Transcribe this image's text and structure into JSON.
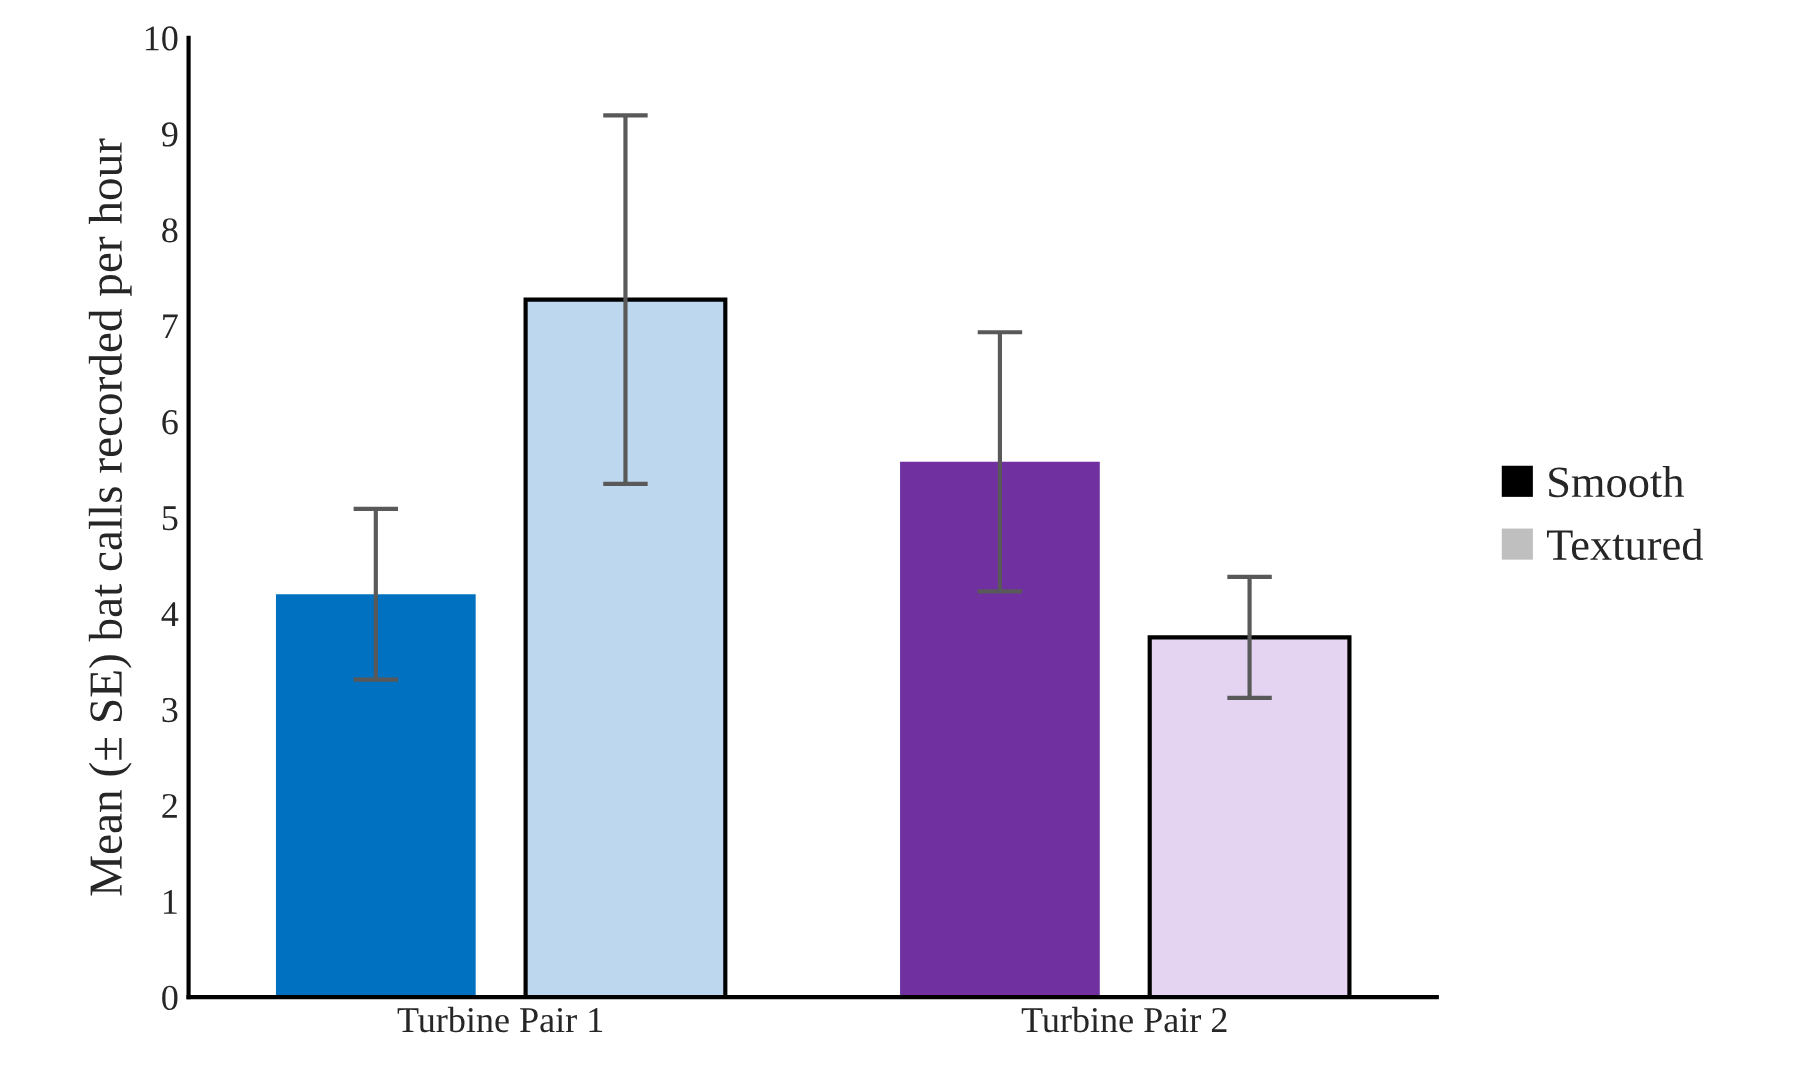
{
  "chart_data": {
    "type": "bar",
    "ylabel": "Mean (± SE) bat calls recorded per hour",
    "categories": [
      "Turbine Pair 1",
      "Turbine Pair 2"
    ],
    "series": [
      {
        "name": "Smooth",
        "color": "#000000",
        "colors": [
          "#0070c0",
          "#7030a0"
        ],
        "values": [
          4.2,
          5.58
        ],
        "errors": [
          0.89,
          1.35
        ]
      },
      {
        "name": "Textured",
        "color": "#bfbfbf",
        "colors": [
          "#bdd7ee",
          "#e4d4f2"
        ],
        "values": [
          7.27,
          3.75
        ],
        "errors": [
          1.92,
          0.63
        ]
      }
    ],
    "ylim": [
      0,
      10
    ],
    "yticks": [
      0,
      1,
      2,
      3,
      4,
      5,
      6,
      7,
      8,
      9,
      10
    ],
    "grid": false,
    "legend": "right"
  }
}
